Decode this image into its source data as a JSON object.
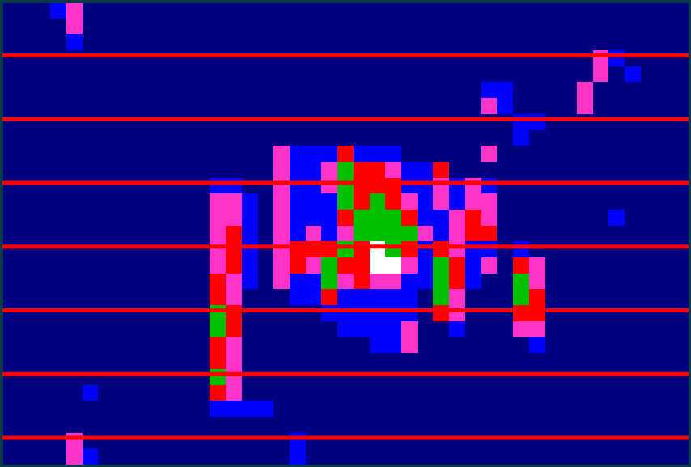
{
  "chart_data": {
    "type": "heatmap",
    "xlim": [
      0,
      43
    ],
    "ylim": [
      0,
      29
    ],
    "yticks": [
      3.3,
      7.3,
      11.3,
      15.3,
      19.3,
      23.3,
      27.3
    ],
    "grid": true,
    "tick_labels": false,
    "colors": [
      "#000080",
      "#0000ff",
      "#ff33c8",
      "#ff0000",
      "#00c000",
      "#ffffff"
    ],
    "z": [
      [
        0,
        0,
        0,
        1,
        2,
        0,
        0,
        0,
        0,
        0,
        0,
        0,
        0,
        0,
        0,
        0,
        0,
        0,
        0,
        0,
        0,
        0,
        0,
        0,
        0,
        0,
        0,
        0,
        0,
        0,
        0,
        0,
        0,
        0,
        0,
        0,
        0,
        0,
        0,
        0,
        0,
        0,
        0
      ],
      [
        0,
        0,
        0,
        0,
        2,
        0,
        0,
        0,
        0,
        0,
        0,
        0,
        0,
        0,
        0,
        0,
        0,
        0,
        0,
        0,
        0,
        0,
        0,
        0,
        0,
        0,
        0,
        0,
        0,
        0,
        0,
        0,
        0,
        0,
        0,
        0,
        0,
        0,
        0,
        0,
        0,
        0,
        0
      ],
      [
        0,
        0,
        0,
        0,
        1,
        0,
        0,
        0,
        0,
        0,
        0,
        0,
        0,
        0,
        0,
        0,
        0,
        0,
        0,
        0,
        0,
        0,
        0,
        0,
        0,
        0,
        0,
        0,
        0,
        0,
        0,
        0,
        0,
        0,
        0,
        0,
        0,
        0,
        0,
        0,
        0,
        0,
        0
      ],
      [
        0,
        0,
        0,
        0,
        0,
        0,
        0,
        0,
        0,
        0,
        0,
        0,
        0,
        0,
        0,
        0,
        0,
        0,
        0,
        0,
        0,
        0,
        0,
        0,
        0,
        0,
        0,
        0,
        0,
        0,
        0,
        0,
        0,
        0,
        0,
        0,
        0,
        2,
        1,
        0,
        0,
        0,
        0
      ],
      [
        0,
        0,
        0,
        0,
        0,
        0,
        0,
        0,
        0,
        0,
        0,
        0,
        0,
        0,
        0,
        0,
        0,
        0,
        0,
        0,
        0,
        0,
        0,
        0,
        0,
        0,
        0,
        0,
        0,
        0,
        0,
        0,
        0,
        0,
        0,
        0,
        0,
        2,
        0,
        1,
        0,
        0,
        0
      ],
      [
        0,
        0,
        0,
        0,
        0,
        0,
        0,
        0,
        0,
        0,
        0,
        0,
        0,
        0,
        0,
        0,
        0,
        0,
        0,
        0,
        0,
        0,
        0,
        0,
        0,
        0,
        0,
        0,
        0,
        0,
        1,
        1,
        0,
        0,
        0,
        0,
        2,
        0,
        0,
        0,
        0,
        0,
        0
      ],
      [
        0,
        0,
        0,
        0,
        0,
        0,
        0,
        0,
        0,
        0,
        0,
        0,
        0,
        0,
        0,
        0,
        0,
        0,
        0,
        0,
        0,
        0,
        0,
        0,
        0,
        0,
        0,
        0,
        0,
        0,
        2,
        1,
        0,
        0,
        0,
        0,
        2,
        0,
        0,
        0,
        0,
        0,
        0
      ],
      [
        0,
        0,
        0,
        0,
        0,
        0,
        0,
        0,
        0,
        0,
        0,
        0,
        0,
        0,
        0,
        0,
        0,
        0,
        0,
        0,
        0,
        0,
        0,
        0,
        0,
        0,
        0,
        0,
        0,
        0,
        0,
        0,
        1,
        1,
        0,
        0,
        0,
        0,
        0,
        0,
        0,
        0,
        0
      ],
      [
        0,
        0,
        0,
        0,
        0,
        0,
        0,
        0,
        0,
        0,
        0,
        0,
        0,
        0,
        0,
        0,
        0,
        0,
        0,
        0,
        0,
        0,
        0,
        0,
        0,
        0,
        0,
        0,
        0,
        0,
        0,
        0,
        1,
        0,
        0,
        0,
        0,
        0,
        0,
        0,
        0,
        0,
        0
      ],
      [
        0,
        0,
        0,
        0,
        0,
        0,
        0,
        0,
        0,
        0,
        0,
        0,
        0,
        0,
        0,
        0,
        0,
        2,
        1,
        1,
        1,
        3,
        1,
        1,
        1,
        0,
        0,
        0,
        0,
        0,
        2,
        0,
        0,
        0,
        0,
        0,
        0,
        0,
        0,
        0,
        0,
        0,
        0
      ],
      [
        0,
        0,
        0,
        0,
        0,
        0,
        0,
        0,
        0,
        0,
        0,
        0,
        0,
        0,
        0,
        0,
        0,
        2,
        1,
        1,
        2,
        4,
        3,
        3,
        2,
        1,
        1,
        3,
        0,
        0,
        0,
        0,
        0,
        0,
        0,
        0,
        0,
        0,
        0,
        0,
        0,
        0,
        0
      ],
      [
        0,
        0,
        0,
        0,
        0,
        0,
        0,
        0,
        0,
        0,
        0,
        0,
        0,
        1,
        1,
        0,
        0,
        2,
        1,
        1,
        2,
        4,
        3,
        3,
        3,
        1,
        1,
        2,
        1,
        2,
        1,
        0,
        0,
        0,
        0,
        0,
        0,
        0,
        0,
        0,
        0,
        0,
        0
      ],
      [
        0,
        0,
        0,
        0,
        0,
        0,
        0,
        0,
        0,
        0,
        0,
        0,
        0,
        2,
        2,
        1,
        0,
        2,
        1,
        1,
        1,
        4,
        3,
        4,
        3,
        2,
        1,
        2,
        1,
        2,
        2,
        0,
        0,
        0,
        0,
        0,
        0,
        0,
        0,
        0,
        0,
        0,
        0
      ],
      [
        0,
        0,
        0,
        0,
        0,
        0,
        0,
        0,
        0,
        0,
        0,
        0,
        0,
        2,
        2,
        1,
        0,
        2,
        1,
        1,
        1,
        3,
        4,
        4,
        4,
        3,
        1,
        1,
        2,
        3,
        2,
        0,
        0,
        0,
        0,
        0,
        0,
        0,
        1,
        0,
        0,
        0,
        0
      ],
      [
        0,
        0,
        0,
        0,
        0,
        0,
        0,
        0,
        0,
        0,
        0,
        0,
        0,
        2,
        3,
        1,
        0,
        2,
        1,
        2,
        1,
        2,
        4,
        4,
        4,
        4,
        2,
        1,
        2,
        3,
        3,
        0,
        0,
        0,
        0,
        0,
        0,
        0,
        0,
        0,
        0,
        0,
        0
      ],
      [
        0,
        0,
        0,
        0,
        0,
        0,
        0,
        0,
        0,
        0,
        0,
        0,
        0,
        2,
        3,
        1,
        0,
        2,
        3,
        3,
        3,
        4,
        3,
        5,
        4,
        3,
        1,
        3,
        2,
        1,
        1,
        0,
        1,
        0,
        0,
        0,
        0,
        0,
        0,
        0,
        0,
        0,
        0
      ],
      [
        0,
        0,
        0,
        0,
        0,
        0,
        0,
        0,
        0,
        0,
        0,
        0,
        0,
        2,
        3,
        1,
        0,
        2,
        3,
        2,
        4,
        3,
        3,
        5,
        5,
        2,
        1,
        4,
        3,
        1,
        2,
        0,
        3,
        2,
        0,
        0,
        0,
        0,
        0,
        0,
        0,
        0,
        0
      ],
      [
        0,
        0,
        0,
        0,
        0,
        0,
        0,
        0,
        0,
        0,
        0,
        0,
        0,
        3,
        2,
        1,
        0,
        2,
        1,
        1,
        4,
        2,
        3,
        2,
        2,
        1,
        1,
        4,
        3,
        1,
        0,
        0,
        4,
        2,
        0,
        0,
        0,
        0,
        0,
        0,
        0,
        0,
        0
      ],
      [
        0,
        0,
        0,
        0,
        0,
        0,
        0,
        0,
        0,
        0,
        0,
        0,
        0,
        3,
        2,
        0,
        0,
        0,
        1,
        1,
        3,
        1,
        1,
        1,
        1,
        1,
        0,
        4,
        2,
        0,
        0,
        0,
        4,
        3,
        0,
        0,
        0,
        0,
        0,
        0,
        0,
        0,
        0
      ],
      [
        0,
        0,
        0,
        0,
        0,
        0,
        0,
        0,
        0,
        0,
        0,
        0,
        0,
        4,
        3,
        0,
        0,
        0,
        0,
        0,
        1,
        1,
        1,
        1,
        1,
        1,
        0,
        3,
        2,
        0,
        0,
        0,
        3,
        3,
        0,
        0,
        0,
        0,
        0,
        0,
        0,
        0,
        0
      ],
      [
        0,
        0,
        0,
        0,
        0,
        0,
        0,
        0,
        0,
        0,
        0,
        0,
        0,
        4,
        3,
        0,
        0,
        0,
        0,
        0,
        0,
        1,
        1,
        1,
        1,
        2,
        0,
        0,
        1,
        0,
        0,
        0,
        2,
        2,
        0,
        0,
        0,
        0,
        0,
        0,
        0,
        0,
        0
      ],
      [
        0,
        0,
        0,
        0,
        0,
        0,
        0,
        0,
        0,
        0,
        0,
        0,
        0,
        3,
        2,
        0,
        0,
        0,
        0,
        0,
        0,
        0,
        0,
        1,
        1,
        2,
        0,
        0,
        0,
        0,
        0,
        0,
        0,
        1,
        0,
        0,
        0,
        0,
        0,
        0,
        0,
        0,
        0
      ],
      [
        0,
        0,
        0,
        0,
        0,
        0,
        0,
        0,
        0,
        0,
        0,
        0,
        0,
        3,
        2,
        0,
        0,
        0,
        0,
        0,
        0,
        0,
        0,
        0,
        0,
        0,
        0,
        0,
        0,
        0,
        0,
        0,
        0,
        0,
        0,
        0,
        0,
        0,
        0,
        0,
        0,
        0,
        0
      ],
      [
        0,
        0,
        0,
        0,
        0,
        0,
        0,
        0,
        0,
        0,
        0,
        0,
        0,
        4,
        2,
        0,
        0,
        0,
        0,
        0,
        0,
        0,
        0,
        0,
        0,
        0,
        0,
        0,
        0,
        0,
        0,
        0,
        0,
        0,
        0,
        0,
        0,
        0,
        0,
        0,
        0,
        0,
        0
      ],
      [
        0,
        0,
        0,
        0,
        0,
        1,
        0,
        0,
        0,
        0,
        0,
        0,
        0,
        3,
        2,
        0,
        0,
        0,
        0,
        0,
        0,
        0,
        0,
        0,
        0,
        0,
        0,
        0,
        0,
        0,
        0,
        0,
        0,
        0,
        0,
        0,
        0,
        0,
        0,
        0,
        0,
        0,
        0
      ],
      [
        0,
        0,
        0,
        0,
        0,
        0,
        0,
        0,
        0,
        0,
        0,
        0,
        0,
        1,
        1,
        1,
        1,
        0,
        0,
        0,
        0,
        0,
        0,
        0,
        0,
        0,
        0,
        0,
        0,
        0,
        0,
        0,
        0,
        0,
        0,
        0,
        0,
        0,
        0,
        0,
        0,
        0,
        0
      ],
      [
        0,
        0,
        0,
        0,
        0,
        0,
        0,
        0,
        0,
        0,
        0,
        0,
        0,
        0,
        0,
        0,
        0,
        0,
        0,
        0,
        0,
        0,
        0,
        0,
        0,
        0,
        0,
        0,
        0,
        0,
        0,
        0,
        0,
        0,
        0,
        0,
        0,
        0,
        0,
        0,
        0,
        0,
        0
      ],
      [
        0,
        0,
        0,
        0,
        2,
        0,
        0,
        0,
        0,
        0,
        0,
        0,
        0,
        0,
        0,
        0,
        0,
        0,
        1,
        0,
        0,
        0,
        0,
        0,
        0,
        0,
        0,
        0,
        0,
        0,
        0,
        0,
        0,
        0,
        0,
        0,
        0,
        0,
        0,
        0,
        0,
        0,
        0
      ],
      [
        0,
        0,
        0,
        0,
        2,
        1,
        0,
        0,
        0,
        0,
        0,
        0,
        0,
        0,
        0,
        0,
        0,
        0,
        1,
        0,
        0,
        0,
        0,
        0,
        0,
        0,
        0,
        0,
        0,
        0,
        0,
        0,
        0,
        0,
        0,
        0,
        0,
        0,
        0,
        0,
        0,
        0,
        0
      ]
    ]
  }
}
